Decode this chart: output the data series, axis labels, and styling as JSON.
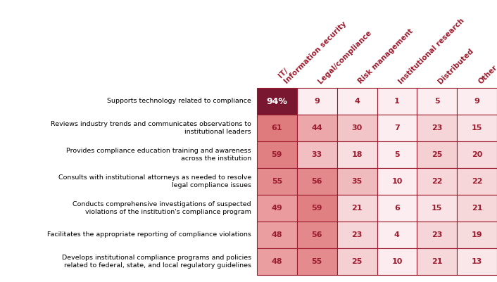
{
  "col_headers": [
    "IT/\nInformation security",
    "Legal/compliance",
    "Risk management",
    "Institutional research",
    "Distributed",
    "Other"
  ],
  "row_labels": [
    "Supports technology related to compliance",
    "Reviews industry trends and communicates observations to\ninstitutional leaders",
    "Provides compliance education training and awareness\nacross the institution",
    "Consults with institutional attorneys as needed to resolve\nlegal compliance issues",
    "Conducts comprehensive investigations of suspected\nviolations of the institution's compliance program",
    "Facilitates the appropriate reporting of compliance violations",
    "Develops institutional compliance programs and policies\nrelated to federal, state, and local regulatory guidelines"
  ],
  "values": [
    [
      94,
      9,
      4,
      1,
      5,
      9
    ],
    [
      61,
      44,
      30,
      7,
      23,
      15
    ],
    [
      59,
      33,
      18,
      5,
      25,
      20
    ],
    [
      55,
      56,
      35,
      10,
      22,
      22
    ],
    [
      49,
      59,
      21,
      6,
      15,
      21
    ],
    [
      48,
      56,
      23,
      4,
      23,
      19
    ],
    [
      48,
      55,
      25,
      10,
      21,
      13
    ]
  ],
  "special_label": "94%",
  "special_row": 0,
  "special_col": 0,
  "col_header_color": "#9b1c2e",
  "cell_border_color": "#9b1c2e",
  "text_color": "#9b1c2e",
  "bg_color": "#ffffff",
  "row_label_color": "#000000",
  "dark_cell": "#7a1730",
  "color_scale_max": 94
}
